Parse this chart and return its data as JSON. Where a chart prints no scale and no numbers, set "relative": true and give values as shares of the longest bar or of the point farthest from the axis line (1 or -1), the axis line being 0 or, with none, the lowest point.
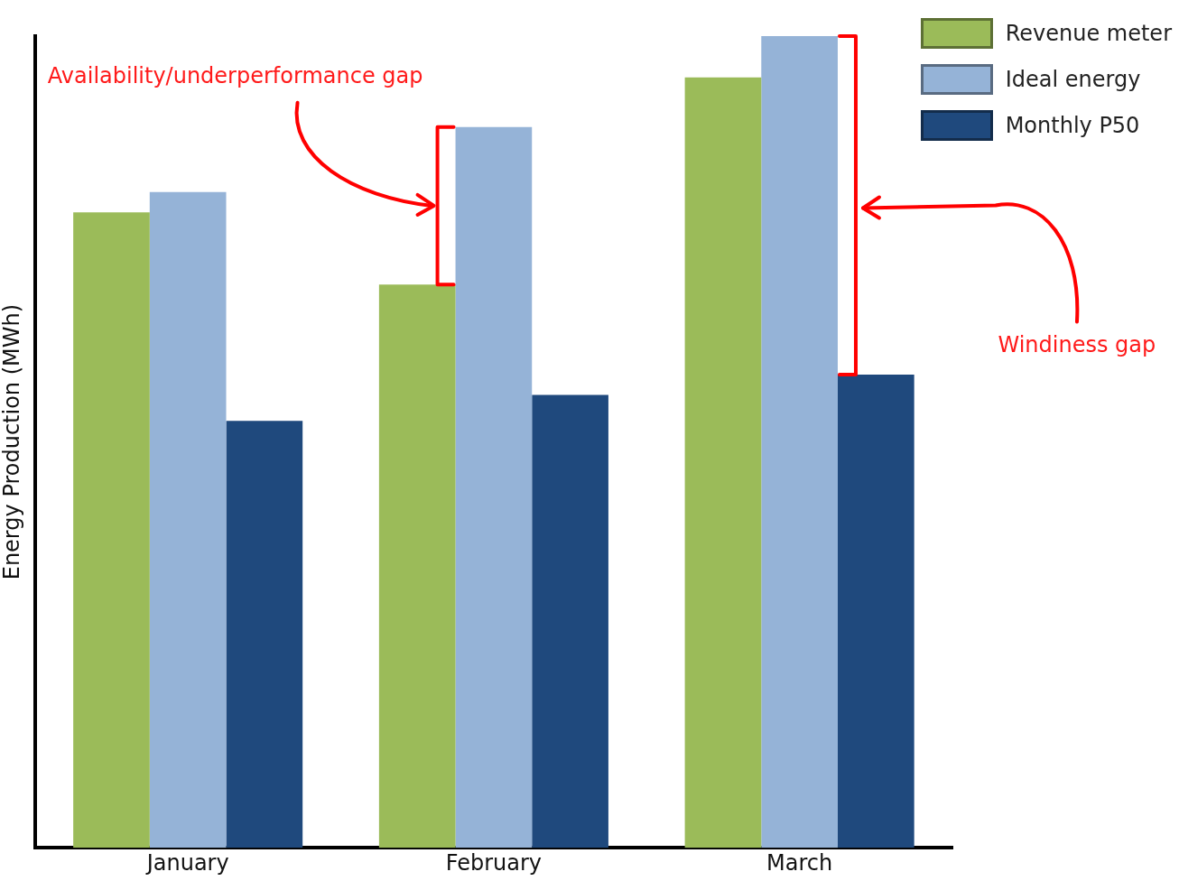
{
  "chart_data": {
    "type": "bar",
    "relative": true,
    "ylabel": "Energy Production (MWh)",
    "categories": [
      "January",
      "February",
      "March"
    ],
    "series": [
      {
        "name": "Revenue  meter",
        "color": "#9bbb59",
        "values": [
          0.783,
          0.694,
          0.949
        ]
      },
      {
        "name": "Ideal energy",
        "color": "#95b3d7",
        "values": [
          0.808,
          0.888,
          1
        ]
      },
      {
        "name": "Monthly P50",
        "color": "#1f497d",
        "values": [
          0.526,
          0.558,
          0.583
        ]
      }
    ],
    "legend": "top right",
    "annotations": [
      "Availability/underperformance  gap",
      "Windiness gap"
    ]
  }
}
